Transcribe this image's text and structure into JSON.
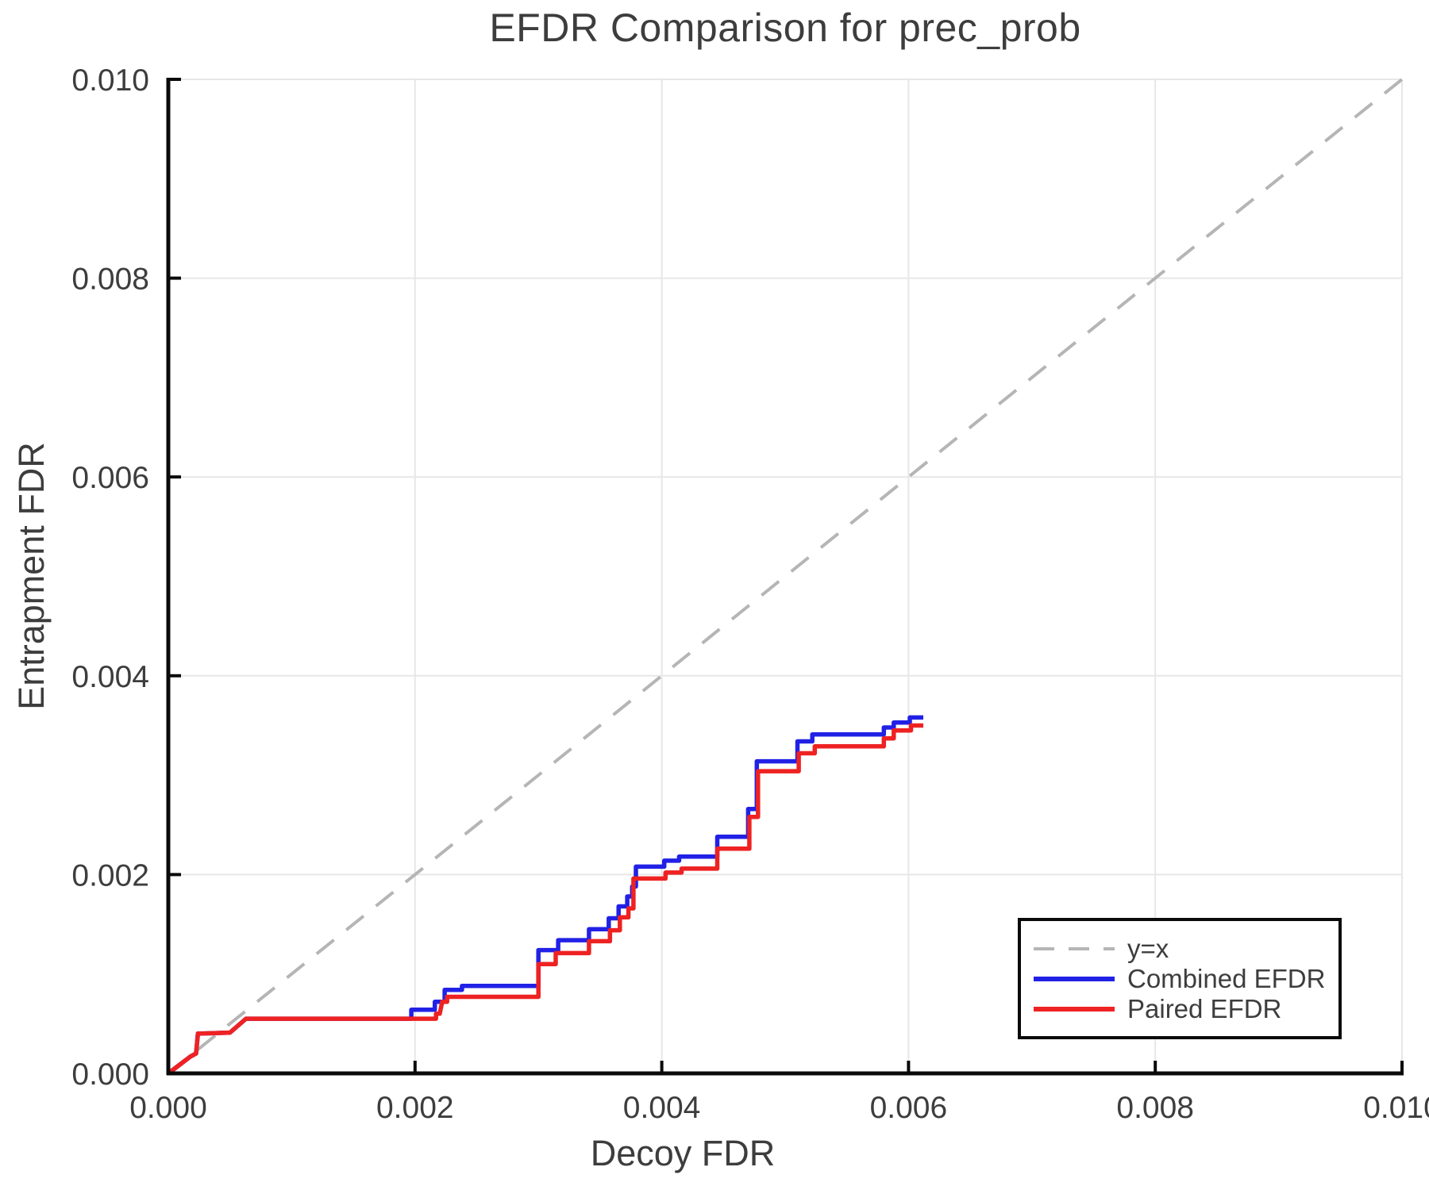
{
  "page": {
    "background": "#ffffff"
  },
  "chart_data": {
    "type": "line",
    "title": "EFDR Comparison for prec_prob",
    "xlabel": "Decoy FDR",
    "ylabel": "Entrapment FDR",
    "xlim": [
      0.0,
      0.01
    ],
    "ylim": [
      0.0,
      0.01
    ],
    "grid": true,
    "legend_position": "lower right",
    "colors": {
      "grid": "#e7e7e7",
      "spine": "#0a0a0a",
      "tick": "#0a0a0a",
      "text": "#3d3d3d",
      "identity": "#b5b5b5",
      "combined": "#2121e6",
      "paired": "#ee2222"
    },
    "xticks": {
      "values": [
        0.0,
        0.002,
        0.004,
        0.006,
        0.008,
        0.01
      ],
      "labels": [
        "0.000",
        "0.002",
        "0.004",
        "0.006",
        "0.008",
        "0.010"
      ]
    },
    "yticks": {
      "values": [
        0.0,
        0.002,
        0.004,
        0.006,
        0.008,
        0.01
      ],
      "labels": [
        "0.000",
        "0.002",
        "0.004",
        "0.006",
        "0.008",
        "0.010"
      ]
    },
    "series": [
      {
        "name": "y=x",
        "key": "identity",
        "color": "#b5b5b5",
        "dash": true,
        "width": 4,
        "points": [
          [
            0.0,
            0.0
          ],
          [
            0.01,
            0.01
          ]
        ]
      },
      {
        "name": "Combined EFDR",
        "key": "combined",
        "color": "#2121e6",
        "dash": false,
        "width": 5.5,
        "points": [
          [
            0.0,
            0.0
          ],
          [
            0.00018,
            0.00017
          ],
          [
            0.000225,
            0.0002
          ],
          [
            0.00024,
            0.0004
          ],
          [
            0.0005,
            0.00041
          ],
          [
            0.00063,
            0.00055
          ],
          [
            0.00197,
            0.00055
          ],
          [
            0.00197,
            0.00064
          ],
          [
            0.00216,
            0.00064
          ],
          [
            0.00216,
            0.00072
          ],
          [
            0.00224,
            0.00072
          ],
          [
            0.00224,
            0.00084
          ],
          [
            0.00238,
            0.00084
          ],
          [
            0.00238,
            0.00088
          ],
          [
            0.003,
            0.00088
          ],
          [
            0.003,
            0.00124
          ],
          [
            0.00316,
            0.00124
          ],
          [
            0.00316,
            0.00134
          ],
          [
            0.00341,
            0.00134
          ],
          [
            0.00341,
            0.00145
          ],
          [
            0.00357,
            0.00145
          ],
          [
            0.00357,
            0.00156
          ],
          [
            0.00365,
            0.00156
          ],
          [
            0.00365,
            0.00168
          ],
          [
            0.00372,
            0.00168
          ],
          [
            0.00372,
            0.00178
          ],
          [
            0.00376,
            0.00178
          ],
          [
            0.00376,
            0.00188
          ],
          [
            0.00379,
            0.00188
          ],
          [
            0.00379,
            0.00208
          ],
          [
            0.00402,
            0.00208
          ],
          [
            0.00402,
            0.00214
          ],
          [
            0.00414,
            0.00214
          ],
          [
            0.00414,
            0.00218
          ],
          [
            0.00445,
            0.00218
          ],
          [
            0.00445,
            0.00238
          ],
          [
            0.0047,
            0.00238
          ],
          [
            0.0047,
            0.00266
          ],
          [
            0.00477,
            0.00266
          ],
          [
            0.00477,
            0.00314
          ],
          [
            0.0051,
            0.00314
          ],
          [
            0.0051,
            0.00334
          ],
          [
            0.00522,
            0.00334
          ],
          [
            0.00522,
            0.00341
          ],
          [
            0.0058,
            0.00341
          ],
          [
            0.0058,
            0.00348
          ],
          [
            0.00588,
            0.00348
          ],
          [
            0.00588,
            0.00353
          ],
          [
            0.00601,
            0.00353
          ],
          [
            0.00601,
            0.00358
          ],
          [
            0.00612,
            0.00358
          ]
        ]
      },
      {
        "name": "Paired EFDR",
        "key": "paired",
        "color": "#ee2222",
        "dash": false,
        "width": 5.5,
        "points": [
          [
            0.0,
            0.0
          ],
          [
            0.00018,
            0.00017
          ],
          [
            0.000225,
            0.0002
          ],
          [
            0.00024,
            0.0004
          ],
          [
            0.0005,
            0.00041
          ],
          [
            0.00063,
            0.00055
          ],
          [
            0.00217,
            0.00055
          ],
          [
            0.00217,
            0.0006
          ],
          [
            0.0022,
            0.0006
          ],
          [
            0.00222,
            0.00072
          ],
          [
            0.00226,
            0.00072
          ],
          [
            0.00226,
            0.00077
          ],
          [
            0.003,
            0.00077
          ],
          [
            0.003,
            0.0011
          ],
          [
            0.00314,
            0.0011
          ],
          [
            0.00314,
            0.00121
          ],
          [
            0.00341,
            0.00121
          ],
          [
            0.00341,
            0.00133
          ],
          [
            0.00358,
            0.00133
          ],
          [
            0.00358,
            0.00144
          ],
          [
            0.00366,
            0.00144
          ],
          [
            0.00366,
            0.00157
          ],
          [
            0.00373,
            0.00157
          ],
          [
            0.00373,
            0.00166
          ],
          [
            0.00377,
            0.00166
          ],
          [
            0.00377,
            0.00196
          ],
          [
            0.00403,
            0.00196
          ],
          [
            0.00403,
            0.00202
          ],
          [
            0.00416,
            0.00202
          ],
          [
            0.00416,
            0.00206
          ],
          [
            0.00445,
            0.00206
          ],
          [
            0.00445,
            0.00226
          ],
          [
            0.00471,
            0.00226
          ],
          [
            0.00471,
            0.00258
          ],
          [
            0.00478,
            0.00258
          ],
          [
            0.00478,
            0.00304
          ],
          [
            0.00511,
            0.00304
          ],
          [
            0.00511,
            0.00322
          ],
          [
            0.00524,
            0.00322
          ],
          [
            0.00524,
            0.00329
          ],
          [
            0.0058,
            0.00329
          ],
          [
            0.0058,
            0.00337
          ],
          [
            0.00588,
            0.00337
          ],
          [
            0.00588,
            0.00345
          ],
          [
            0.00602,
            0.00345
          ],
          [
            0.00602,
            0.0035
          ],
          [
            0.00612,
            0.0035
          ]
        ]
      }
    ]
  }
}
